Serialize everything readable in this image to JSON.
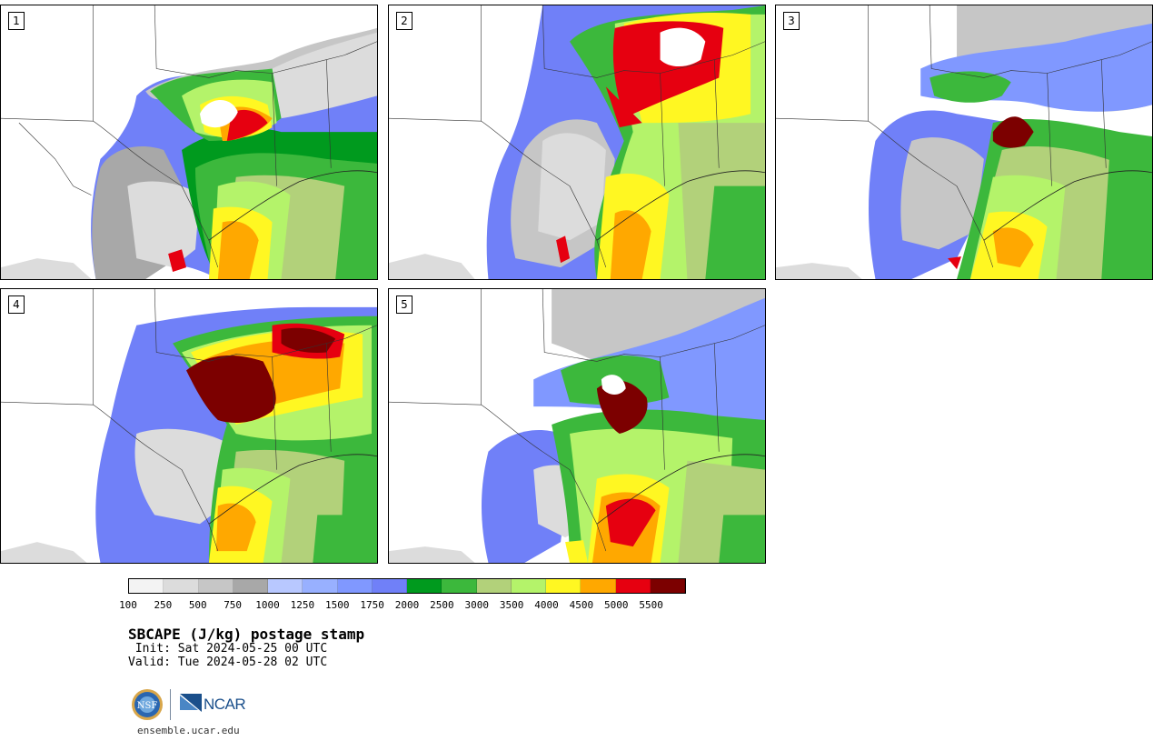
{
  "panels": [
    {
      "label": "1"
    },
    {
      "label": "2"
    },
    {
      "label": "3"
    },
    {
      "label": "4"
    },
    {
      "label": "5"
    }
  ],
  "colorbar": {
    "colors": [
      "#f3f3f3",
      "#dcdcdc",
      "#c6c6c6",
      "#a8a8a8",
      "#b8c8ff",
      "#98b0ff",
      "#8098ff",
      "#7080f8",
      "#009a1e",
      "#3cb83c",
      "#b2d17a",
      "#b4f36a",
      "#fff722",
      "#ffa800",
      "#e60010",
      "#7c0000"
    ],
    "tick_labels": [
      "100",
      "250",
      "500",
      "750",
      "1000",
      "1250",
      "1500",
      "1750",
      "2000",
      "2500",
      "3000",
      "3500",
      "4000",
      "4500",
      "5000",
      "5500"
    ]
  },
  "title": "SBCAPE (J/kg) postage stamp",
  "init": " Init: Sat 2024-05-25 00 UTC",
  "valid": "Valid: Tue 2024-05-28 02 UTC",
  "logos": {
    "nsf_label": "NSF",
    "ncar_label": "NCAR"
  },
  "site": "ensemble.ucar.edu"
}
